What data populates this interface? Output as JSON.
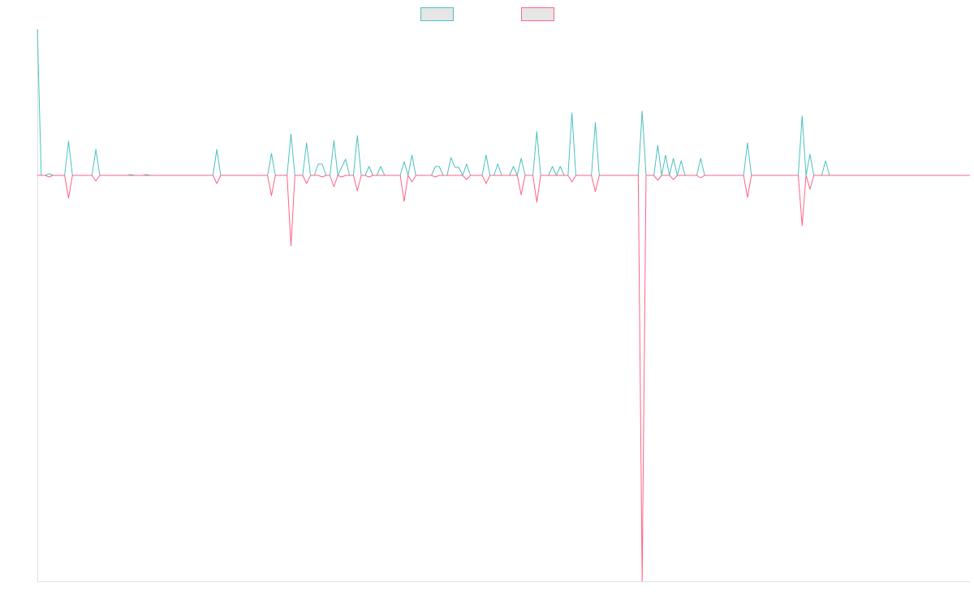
{
  "chart_data": {
    "type": "line",
    "categories": [
      null,
      null,
      null,
      null,
      null,
      null,
      null,
      null,
      null,
      null,
      null,
      null,
      null,
      null,
      null,
      null,
      null,
      null,
      null,
      null,
      null,
      null,
      null,
      null,
      null,
      null,
      null,
      null,
      null,
      null,
      null,
      null,
      null,
      null,
      null,
      null,
      null,
      null,
      null,
      null,
      null,
      null,
      null,
      null,
      null,
      null,
      null,
      null,
      null,
      null,
      null,
      null,
      null,
      null,
      null,
      null,
      null,
      null,
      null,
      null,
      null,
      null,
      null,
      null,
      null,
      null,
      null,
      null,
      null,
      null,
      null,
      null,
      null,
      null,
      null,
      null,
      null,
      null,
      null,
      null,
      null,
      null,
      null,
      null,
      null,
      null,
      null,
      null,
      null,
      null,
      null,
      null,
      null,
      null,
      null,
      null,
      null,
      null,
      null,
      null,
      null,
      null,
      null,
      null,
      null,
      null,
      null,
      null,
      null,
      null,
      null,
      null,
      null,
      null,
      null,
      null,
      null,
      null,
      null,
      null,
      null,
      null,
      null,
      null,
      null,
      null,
      null,
      null,
      null,
      null,
      null,
      null,
      null,
      null,
      null,
      null,
      null,
      null,
      null,
      null,
      null,
      null,
      null,
      null,
      null,
      null,
      null,
      null,
      null,
      null,
      null,
      null,
      null,
      null,
      null,
      null,
      null,
      null,
      null,
      null,
      null,
      null,
      null,
      null,
      null,
      null,
      null,
      null,
      null,
      null,
      null,
      null,
      null,
      null,
      null,
      null,
      null,
      null,
      null,
      null,
      null,
      null,
      null,
      null,
      null,
      null,
      null,
      null,
      null,
      null,
      null,
      null,
      null,
      null,
      null,
      null,
      null,
      null,
      null,
      null,
      null,
      null,
      null,
      null,
      null,
      null,
      null,
      null,
      null,
      null,
      null,
      null,
      null,
      null,
      null,
      null,
      null,
      null,
      null,
      null,
      null,
      null,
      null,
      null,
      null,
      null,
      null,
      null,
      null,
      null,
      null,
      null,
      null,
      null,
      null,
      null,
      null,
      null,
      null,
      null
    ],
    "series": [
      {
        "color": "#4bc0c0",
        "values": [
          36,
          0,
          0,
          0.4,
          0,
          0,
          0,
          0,
          8.4,
          0,
          0,
          0,
          0,
          0,
          0,
          6.4,
          0,
          0,
          0,
          0,
          0,
          0,
          0,
          0,
          0.2,
          0,
          0,
          0,
          0.2,
          0,
          0,
          0,
          0,
          0,
          0,
          0,
          0,
          0,
          0,
          0,
          0,
          0,
          0,
          0,
          0,
          0,
          6.4,
          0,
          0,
          0,
          0,
          0,
          0,
          0,
          0,
          0,
          0,
          0,
          0,
          0,
          5.4,
          0,
          0,
          0,
          0,
          10.2,
          0,
          0,
          0,
          8,
          0,
          0,
          2.8,
          2.8,
          0,
          0,
          8.6,
          0,
          2,
          4,
          0,
          0,
          9.8,
          0,
          0,
          2.2,
          0,
          0,
          2.2,
          0,
          0,
          0,
          0,
          0,
          3.4,
          0,
          5,
          0,
          0,
          0,
          0,
          0,
          2.2,
          2.2,
          0,
          0,
          4.4,
          2,
          2,
          0,
          2.8,
          0,
          0,
          0,
          0,
          5,
          0,
          0,
          2.8,
          0,
          0,
          0,
          2.2,
          0,
          4.2,
          0,
          0,
          0,
          10.8,
          0,
          0,
          0,
          2.2,
          0,
          2.2,
          0,
          0,
          15.4,
          0,
          0,
          0,
          0,
          0,
          13,
          0,
          0,
          0,
          0,
          0,
          0,
          0,
          0,
          0,
          0,
          0,
          15.8,
          0,
          0,
          0,
          7.4,
          0,
          5,
          0,
          4.2,
          0,
          3.6,
          0,
          0,
          0,
          0,
          4.2,
          0,
          0,
          0,
          0,
          0,
          0,
          0,
          0,
          0,
          0,
          0,
          8,
          0,
          0,
          0,
          0,
          0,
          0,
          0,
          0,
          0,
          0,
          0,
          0,
          0,
          14.6,
          0,
          5.2,
          0,
          0,
          0,
          3.6,
          0,
          0,
          0,
          0,
          0,
          0,
          0,
          0,
          0,
          0,
          0,
          0,
          0,
          0,
          0,
          0,
          0,
          0,
          0,
          0,
          0,
          0,
          0,
          0,
          0,
          0,
          0,
          0,
          0,
          0,
          0,
          0,
          0,
          0,
          0,
          0,
          0
        ]
      },
      {
        "color": "#ff6384",
        "values": [
          0,
          0,
          0,
          -0.4,
          0,
          0,
          0,
          0,
          -5.6,
          0,
          0,
          0,
          0,
          0,
          0,
          -1.4,
          0,
          0,
          0,
          0,
          0,
          0,
          0,
          0,
          0,
          0,
          0,
          0,
          0,
          0,
          0,
          0,
          0,
          0,
          0,
          0,
          0,
          0,
          0,
          0,
          0,
          0,
          0,
          0,
          0,
          0,
          -2,
          0,
          0,
          0,
          0,
          0,
          0,
          0,
          0,
          0,
          0,
          0,
          0,
          0,
          -5,
          0,
          0,
          0,
          0,
          -17.4,
          0,
          0,
          0,
          -2,
          0,
          0,
          0,
          -0.4,
          0,
          0,
          -2.8,
          0,
          -0.4,
          0,
          0,
          0,
          -3.8,
          0,
          0,
          -0.4,
          0,
          0,
          0,
          0,
          0,
          0,
          0,
          0,
          -6.4,
          0,
          -1.6,
          0,
          0,
          0,
          0,
          0,
          -0.4,
          0,
          0,
          0,
          0,
          0,
          0,
          0,
          -1,
          0,
          0,
          0,
          0,
          -2,
          0,
          0,
          0,
          0,
          0,
          0,
          0,
          0,
          -4.8,
          0,
          0,
          0,
          -6.6,
          0,
          0,
          0,
          0,
          0,
          0,
          0,
          0,
          -1.6,
          0,
          0,
          0,
          0,
          0,
          -4,
          0,
          0,
          0,
          0,
          0,
          0,
          0,
          0,
          0,
          0,
          0,
          -100,
          0,
          0,
          0,
          -1.2,
          0,
          0,
          0,
          -1,
          0,
          0,
          0,
          0,
          0,
          0,
          -0.6,
          0,
          0,
          0,
          0,
          0,
          0,
          0,
          0,
          0,
          0,
          0,
          -5.4,
          0,
          0,
          0,
          0,
          0,
          0,
          0,
          0,
          0,
          0,
          0,
          0,
          0,
          -12.4,
          0,
          -3.4,
          0,
          0,
          0,
          0,
          0,
          0,
          0,
          0,
          0,
          0,
          0,
          0,
          0,
          0,
          0,
          0,
          0,
          0,
          0,
          0,
          0,
          0,
          0,
          0,
          0,
          0,
          0,
          0,
          0,
          0,
          0,
          0,
          0,
          0,
          0,
          0,
          0,
          0,
          0,
          0,
          0
        ]
      }
    ],
    "ylim": [
      -100,
      36
    ],
    "legend": "top"
  }
}
